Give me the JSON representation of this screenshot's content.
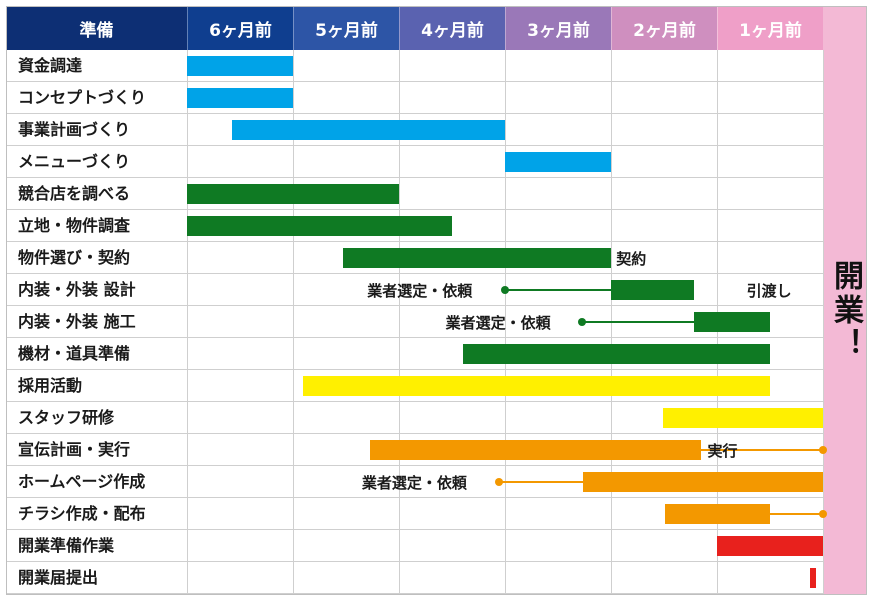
{
  "header": {
    "corner_label": "準備",
    "months": [
      {
        "label": "6ヶ月前",
        "color": "#0f3e8f"
      },
      {
        "label": "5ヶ月前",
        "color": "#2d55a6"
      },
      {
        "label": "4ヶ月前",
        "color": "#5a62b0"
      },
      {
        "label": "3ヶ月前",
        "color": "#9a78b8"
      },
      {
        "label": "2ヶ月前",
        "color": "#cf8fbf"
      },
      {
        "label": "1ヶ月前",
        "color": "#ef9fc8"
      }
    ],
    "corner_color": "#0d2f74"
  },
  "opening": {
    "label": "開業！",
    "color": "#f3b9d5"
  },
  "colors": {
    "blue": "#00a3e8",
    "green": "#0f7a23",
    "yellow": "#fff000",
    "orange": "#f39800",
    "red": "#e8211d"
  },
  "tasks": [
    {
      "label": "資金調達",
      "bars": [
        {
          "start": 6.0,
          "end": 5.0,
          "color": "blue"
        }
      ]
    },
    {
      "label": "コンセプトづくり",
      "bars": [
        {
          "start": 6.0,
          "end": 5.0,
          "color": "blue"
        }
      ]
    },
    {
      "label": "事業計画づくり",
      "bars": [
        {
          "start": 5.58,
          "end": 3.0,
          "color": "blue"
        }
      ]
    },
    {
      "label": "メニューづくり",
      "bars": [
        {
          "start": 3.0,
          "end": 2.0,
          "color": "blue"
        }
      ]
    },
    {
      "label": "競合店を調べる",
      "bars": [
        {
          "start": 6.0,
          "end": 4.0,
          "color": "green"
        }
      ]
    },
    {
      "label": "立地・物件調査",
      "bars": [
        {
          "start": 6.0,
          "end": 3.5,
          "color": "green"
        }
      ]
    },
    {
      "label": "物件選び・契約",
      "bars": [
        {
          "start": 4.53,
          "end": 2.0,
          "color": "green"
        }
      ],
      "annotations": [
        {
          "text": "契約",
          "at": 1.95
        }
      ]
    },
    {
      "label": "内装・外装 設計",
      "bars": [
        {
          "start": 2.0,
          "end": 1.22,
          "color": "green"
        }
      ],
      "lines": [
        {
          "from": 3.0,
          "to": 2.0,
          "color": "green",
          "dot": "start"
        }
      ],
      "annotations": [
        {
          "text": "業者選定・依頼",
          "at": 4.3
        },
        {
          "text": "引渡し",
          "at": 0.72
        }
      ]
    },
    {
      "label": "内装・外装 施工",
      "bars": [
        {
          "start": 1.22,
          "end": 0.5,
          "color": "green"
        }
      ],
      "lines": [
        {
          "from": 2.27,
          "to": 1.22,
          "color": "green",
          "dot": "start"
        }
      ],
      "annotations": [
        {
          "text": "業者選定・依頼",
          "at": 3.56
        }
      ]
    },
    {
      "label": "機材・道具準備",
      "bars": [
        {
          "start": 3.4,
          "end": 0.5,
          "color": "green"
        }
      ]
    },
    {
      "label": "採用活動",
      "bars": [
        {
          "start": 4.91,
          "end": 0.5,
          "color": "yellow"
        }
      ]
    },
    {
      "label": "スタッフ研修",
      "bars": [
        {
          "start": 1.51,
          "end": 0.0,
          "color": "yellow"
        }
      ]
    },
    {
      "label": "宣伝計画・実行",
      "bars": [
        {
          "start": 4.27,
          "end": 1.15,
          "color": "orange"
        }
      ],
      "lines": [
        {
          "from": 1.15,
          "to": 0.0,
          "color": "orange",
          "dot": "end"
        }
      ],
      "annotations": [
        {
          "text": "実行",
          "at": 1.09
        }
      ]
    },
    {
      "label": "ホームページ作成",
      "bars": [
        {
          "start": 2.26,
          "end": 0.0,
          "color": "orange"
        }
      ],
      "lines": [
        {
          "from": 3.06,
          "to": 2.26,
          "color": "orange",
          "dot": "start"
        }
      ],
      "annotations": [
        {
          "text": "業者選定・依頼",
          "at": 4.35
        }
      ]
    },
    {
      "label": "チラシ作成・配布",
      "bars": [
        {
          "start": 1.49,
          "end": 0.5,
          "color": "orange"
        }
      ],
      "lines": [
        {
          "from": 0.5,
          "to": 0.0,
          "color": "orange",
          "dot": "end"
        }
      ]
    },
    {
      "label": "開業準備作業",
      "bars": [
        {
          "start": 1.0,
          "end": 0.0,
          "color": "red"
        }
      ]
    },
    {
      "label": "開業届提出",
      "bars": [
        {
          "start": 0.12,
          "end": 0.07,
          "color": "red"
        }
      ]
    }
  ]
}
